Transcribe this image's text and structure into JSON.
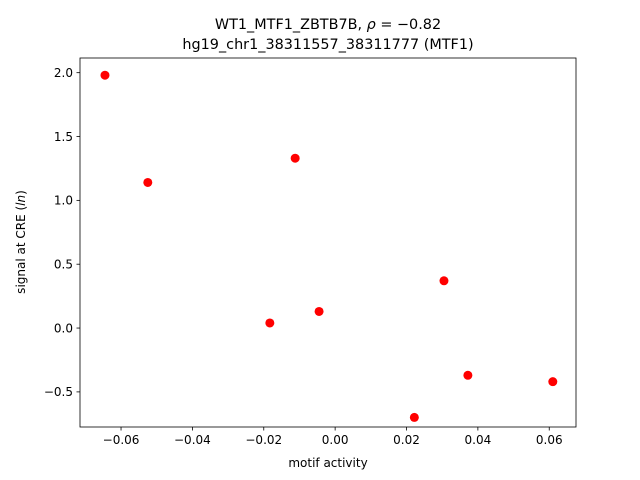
{
  "chart_data": {
    "type": "scatter",
    "title_line1_prefix": "WT1_MTF1_ZBTB7B, ",
    "title_rho": "ρ",
    "title_rho_value": " = −0.82",
    "title_line2": "hg19_chr1_38311557_38311777 (MTF1)",
    "xlabel": "motif activity",
    "ylabel_prefix": "signal at CRE (",
    "ylabel_italic": "ln",
    "ylabel_suffix": ")",
    "xlim": [
      -0.0715,
      0.0675
    ],
    "ylim": [
      -0.775,
      2.115
    ],
    "xticks": [
      -0.06,
      -0.04,
      -0.02,
      0.0,
      0.02,
      0.04,
      0.06
    ],
    "xtick_labels": [
      "−0.06",
      "−0.04",
      "−0.02",
      "0.00",
      "0.02",
      "0.04",
      "0.06"
    ],
    "yticks": [
      -0.5,
      0.0,
      0.5,
      1.0,
      1.5,
      2.0
    ],
    "ytick_labels": [
      "−0.5",
      "0.0",
      "0.5",
      "1.0",
      "1.5",
      "2.0"
    ],
    "grid": false,
    "marker_color": "#ff0000",
    "points": [
      {
        "x": -0.0645,
        "y": 1.98
      },
      {
        "x": -0.0525,
        "y": 1.14
      },
      {
        "x": -0.0112,
        "y": 1.33
      },
      {
        "x": -0.0183,
        "y": 0.04
      },
      {
        "x": -0.0045,
        "y": 0.13
      },
      {
        "x": 0.0305,
        "y": 0.37
      },
      {
        "x": 0.0372,
        "y": -0.37
      },
      {
        "x": 0.0222,
        "y": -0.7
      },
      {
        "x": 0.061,
        "y": -0.42
      }
    ]
  }
}
